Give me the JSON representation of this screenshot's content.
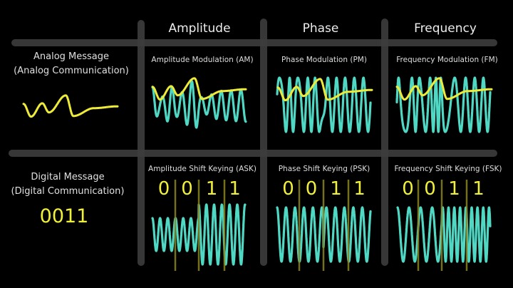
{
  "colors": {
    "background": "#000000",
    "grid_bar": "#3d3d3d",
    "carrier": "#4fd8c4",
    "message": "#eeea38",
    "bit_separator": "#8a8420",
    "text": "#e6e6e6"
  },
  "columns": [
    {
      "label": "Amplitude"
    },
    {
      "label": "Phase"
    },
    {
      "label": "Frequency"
    }
  ],
  "rows": [
    {
      "title": "Analog Message",
      "subtitle": "(Analog Communication)"
    },
    {
      "title": "Digital Message",
      "subtitle": "(Digital Communication)",
      "message_bits": "0011"
    }
  ],
  "cells": {
    "am": {
      "title": "Amplitude Modulation (AM)"
    },
    "pm": {
      "title": "Phase Modulation (PM)"
    },
    "fm": {
      "title": "Frequency Modulation (FM)"
    },
    "ask": {
      "title": "Amplitude Shift Keying (ASK)",
      "bits": [
        "0",
        "0",
        "1",
        "1"
      ]
    },
    "psk": {
      "title": "Phase Shift Keying (PSK)",
      "bits": [
        "0",
        "0",
        "1",
        "1"
      ]
    },
    "fsk": {
      "title": "Frequency Shift Keying (FSK)",
      "bits": [
        "0",
        "0",
        "1",
        "1"
      ]
    }
  }
}
